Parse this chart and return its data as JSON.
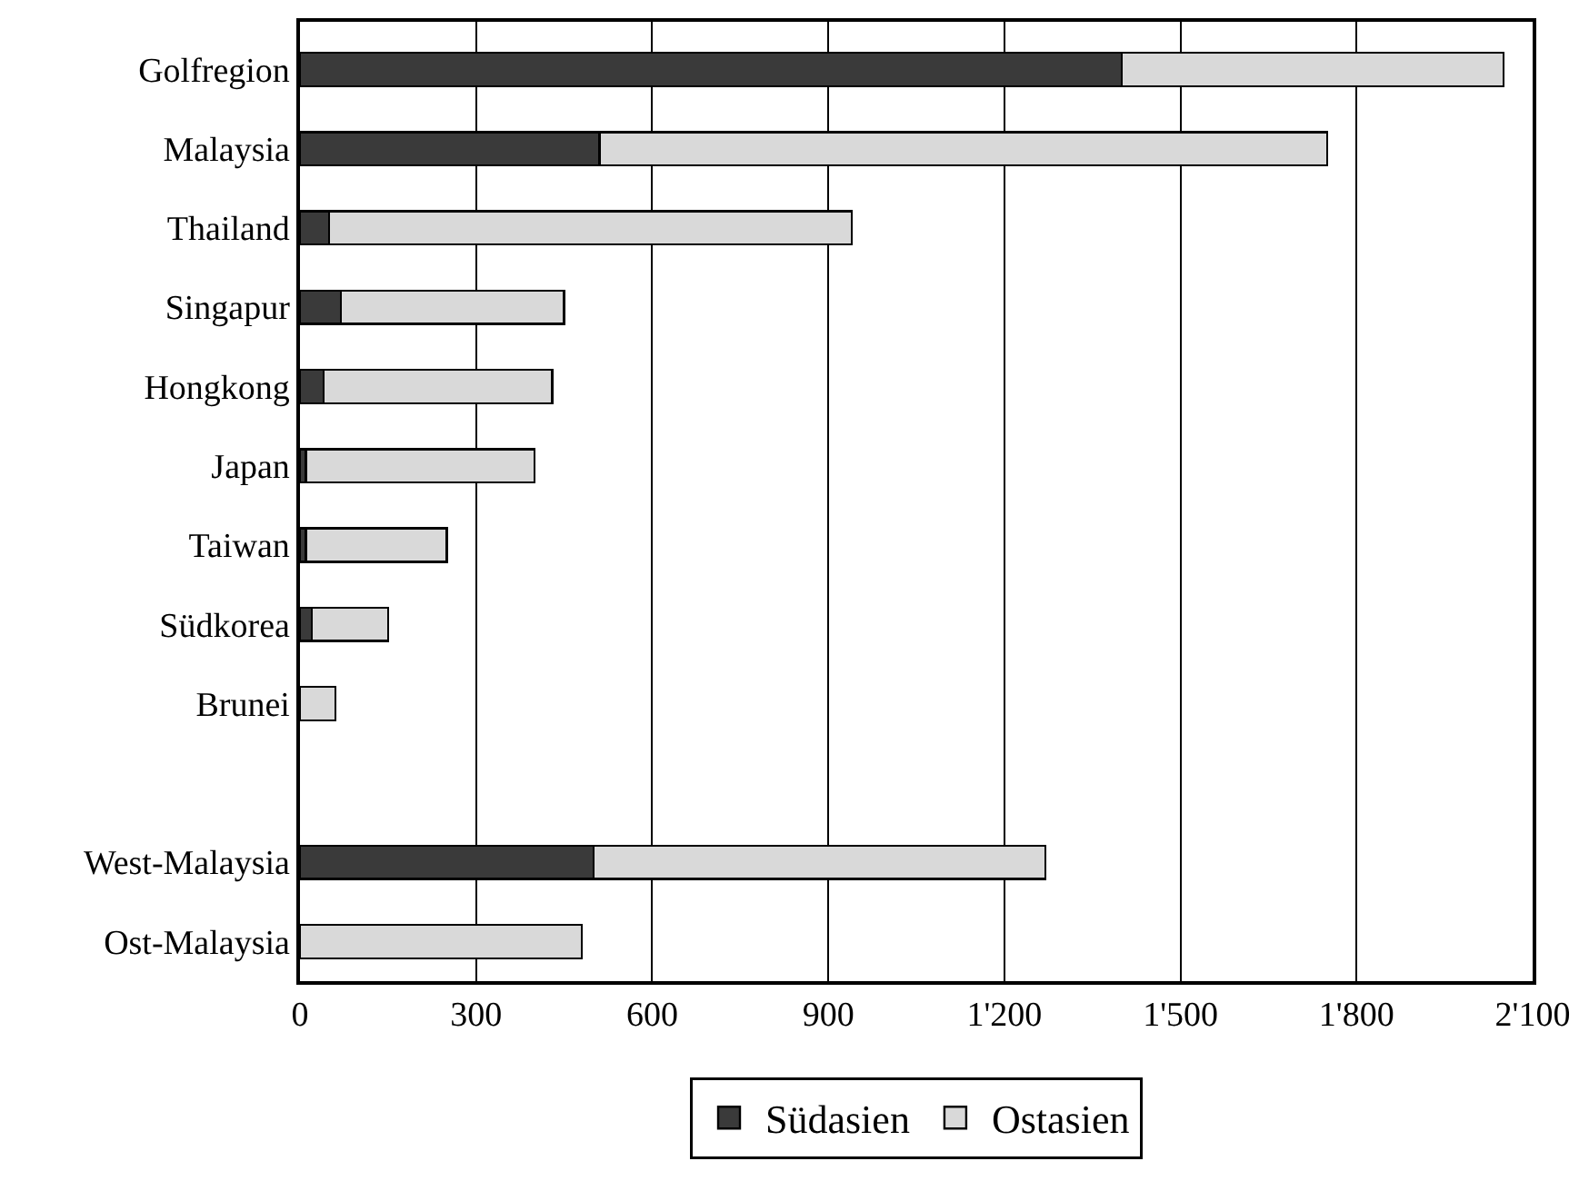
{
  "chart_data": {
    "type": "bar",
    "orientation": "horizontal",
    "stacked": true,
    "categories": [
      "Golfregion",
      "Malaysia",
      "Thailand",
      "Singapur",
      "Hongkong",
      "Japan",
      "Taiwan",
      "Südkorea",
      "Brunei",
      null,
      "West-Malaysia",
      "Ost-Malaysia"
    ],
    "series": [
      {
        "name": "Südasien",
        "color": "#3a3a3a",
        "values": [
          1400,
          510,
          50,
          70,
          40,
          10,
          10,
          20,
          0,
          null,
          500,
          0
        ]
      },
      {
        "name": "Ostasien",
        "color": "#d9d9d9",
        "values": [
          650,
          1240,
          890,
          380,
          390,
          390,
          240,
          130,
          60,
          null,
          770,
          480
        ]
      }
    ],
    "xlim": [
      0,
      2100
    ],
    "xticks": [
      0,
      300,
      600,
      900,
      {
        "value": 1200,
        "label": "1'200"
      },
      {
        "value": 1500,
        "label": "1'500"
      },
      {
        "value": 1800,
        "label": "1'800"
      },
      {
        "value": 2100,
        "label": "2'100"
      }
    ],
    "grid": "x",
    "legend": "bottom"
  }
}
